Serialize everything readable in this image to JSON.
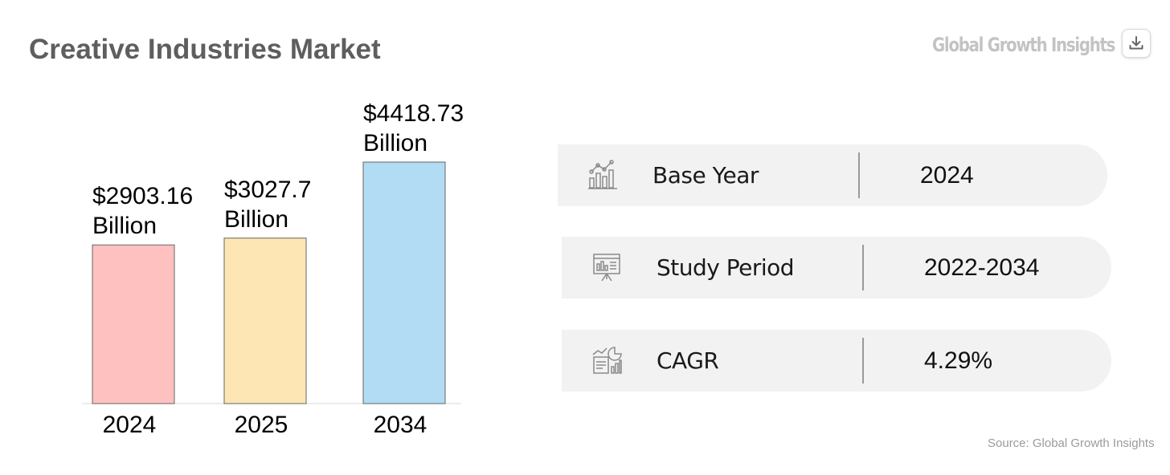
{
  "header": {
    "title": "Creative Industries Market",
    "brand": "Global Growth Insights"
  },
  "chart_data": {
    "type": "bar",
    "categories": [
      "2024",
      "2025",
      "2034"
    ],
    "values": [
      2903.16,
      3027.7,
      4418.73
    ],
    "data_labels": [
      [
        "$2903.16",
        "Billion"
      ],
      [
        "$3027.7",
        "Billion"
      ],
      [
        "$4418.73",
        "Billion"
      ]
    ],
    "colors": [
      "#ffc0c0",
      "#fde5b4",
      "#b1dcf3"
    ],
    "bar_stroke": "#666666",
    "grid": false,
    "legend": "none"
  },
  "stats": [
    {
      "icon": "line-chart-icon",
      "label": "Base Year",
      "value": "2024"
    },
    {
      "icon": "presentation-board-icon",
      "label": "Study Period",
      "value": "2022-2034"
    },
    {
      "icon": "analytics-report-icon",
      "label": "CAGR",
      "value": "4.29%"
    }
  ],
  "footer": {
    "source": "Source: Global Growth Insights"
  }
}
